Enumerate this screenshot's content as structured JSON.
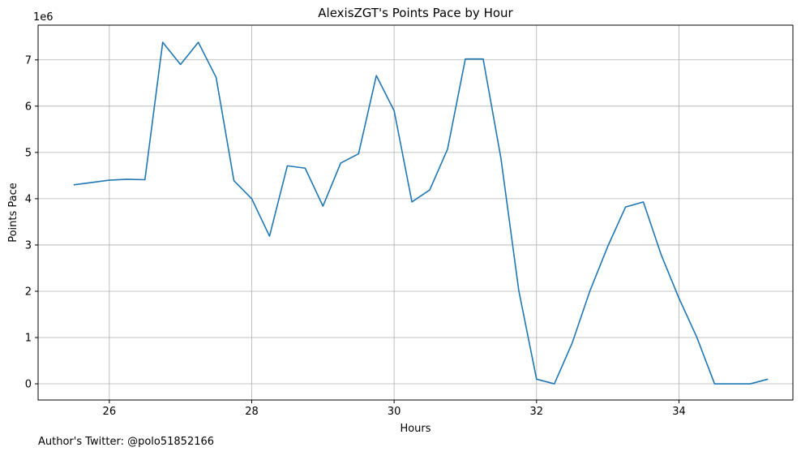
{
  "chart_data": {
    "type": "line",
    "title": "AlexisZGT's Points Pace by Hour",
    "xlabel": "Hours",
    "ylabel": "Points Pace",
    "y_offset_label": "1e6",
    "xlim": [
      25.0,
      35.6
    ],
    "ylim": [
      -350000,
      7750000
    ],
    "x_ticks": [
      26,
      28,
      30,
      32,
      34
    ],
    "y_ticks": [
      0,
      1000000,
      2000000,
      3000000,
      4000000,
      5000000,
      6000000,
      7000000
    ],
    "y_tick_labels": [
      "0",
      "1",
      "2",
      "3",
      "4",
      "5",
      "6",
      "7"
    ],
    "grid": true,
    "line_color": "#1f77b4",
    "x": [
      25.5,
      25.75,
      26.0,
      26.25,
      26.5,
      26.75,
      27.0,
      27.25,
      27.5,
      27.75,
      28.0,
      28.25,
      28.5,
      28.75,
      29.0,
      29.25,
      29.5,
      29.75,
      30.0,
      30.25,
      30.5,
      30.75,
      31.0,
      31.25,
      31.5,
      31.75,
      32.0,
      32.25,
      32.5,
      32.75,
      33.0,
      33.25,
      33.5,
      33.75,
      34.0,
      34.25,
      34.5,
      34.75,
      35.0,
      35.25
    ],
    "values": [
      4300000,
      4350000,
      4400000,
      4420000,
      4410000,
      7380000,
      6900000,
      7380000,
      6620000,
      4390000,
      4000000,
      3190000,
      4710000,
      4660000,
      3840000,
      4770000,
      4970000,
      6660000,
      5900000,
      3930000,
      4190000,
      5070000,
      7020000,
      7020000,
      4870000,
      2020000,
      100000,
      0,
      880000,
      2010000,
      2970000,
      3820000,
      3930000,
      2790000,
      1850000,
      1010000,
      0,
      0,
      0,
      100000
    ]
  },
  "footer": {
    "text": "Author's Twitter: @polo51852166"
  }
}
